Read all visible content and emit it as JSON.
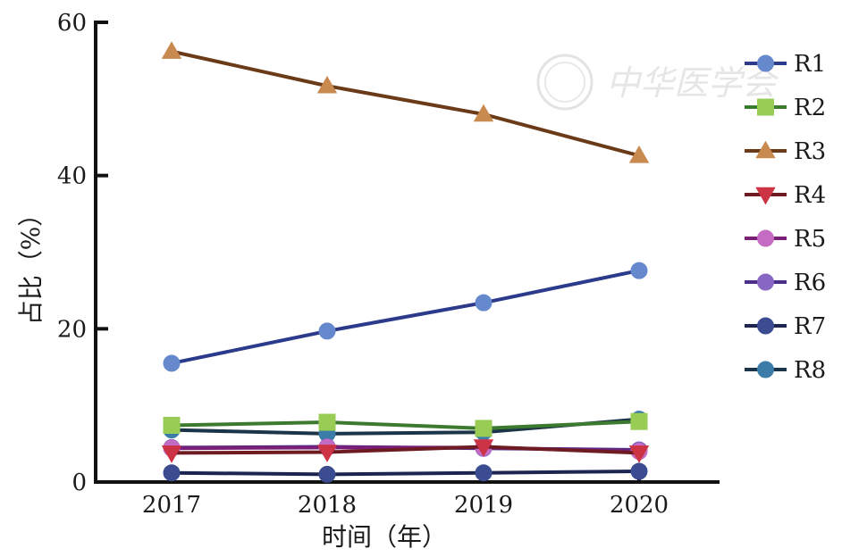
{
  "watermark": {
    "text": "中华医学会"
  },
  "chart_data": {
    "type": "line",
    "xlabel": "时间（年）",
    "ylabel": "占比（%）",
    "x": [
      "2017",
      "2018",
      "2019",
      "2020"
    ],
    "ylim": [
      0,
      60
    ],
    "yticks": [
      "0",
      "20",
      "40",
      "60"
    ],
    "grid": false,
    "legend": "right",
    "series": [
      {
        "name": "R1",
        "color": "#2b3a8a",
        "marker_color": "#6688cc",
        "marker": "circle",
        "values": [
          15.5,
          19.7,
          23.4,
          27.6
        ]
      },
      {
        "name": "R2",
        "color": "#3b7a2f",
        "marker_color": "#99cc55",
        "marker": "square",
        "values": [
          7.4,
          7.8,
          7.0,
          7.9
        ]
      },
      {
        "name": "R3",
        "color": "#6b3a18",
        "marker_color": "#c98a50",
        "marker": "triangle-up",
        "values": [
          56.2,
          51.7,
          48.0,
          42.6
        ]
      },
      {
        "name": "R4",
        "color": "#6e1c22",
        "marker_color": "#cc3344",
        "marker": "triangle-down",
        "values": [
          3.8,
          3.9,
          4.6,
          3.8
        ]
      },
      {
        "name": "R5",
        "color": "#7a1f78",
        "marker_color": "#c46cc4",
        "marker": "circle",
        "values": [
          4.4,
          4.5,
          4.5,
          4.0
        ]
      },
      {
        "name": "R6",
        "color": "#4a2e88",
        "marker_color": "#8866c4",
        "marker": "circle",
        "values": [
          4.5,
          4.6,
          4.4,
          4.2
        ]
      },
      {
        "name": "R7",
        "color": "#1c2450",
        "marker_color": "#3c4c90",
        "marker": "circle",
        "values": [
          1.2,
          1.0,
          1.2,
          1.4
        ]
      },
      {
        "name": "R8",
        "color": "#1c3448",
        "marker_color": "#3c7ca8",
        "marker": "circle",
        "values": [
          6.8,
          6.3,
          6.5,
          8.2
        ]
      }
    ]
  }
}
